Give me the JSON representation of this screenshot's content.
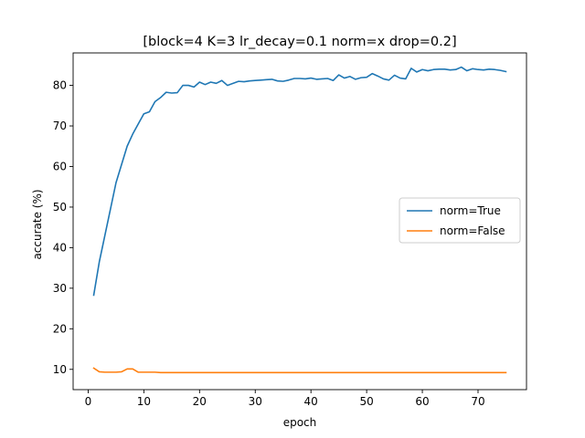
{
  "chart_data": {
    "type": "line",
    "title": "[block=4 K=3 lr_decay=0.1 norm=x drop=0.2]",
    "xlabel": "epoch",
    "ylabel": "accurate (%)",
    "xlim": [
      -2.7,
      78.7
    ],
    "ylim": [
      5.0,
      88.0
    ],
    "xticks": [
      0,
      10,
      20,
      30,
      40,
      50,
      60,
      70
    ],
    "yticks": [
      10,
      20,
      30,
      40,
      50,
      60,
      70,
      80
    ],
    "grid": false,
    "legend_position": "center-right",
    "x": [
      1,
      2,
      3,
      4,
      5,
      6,
      7,
      8,
      9,
      10,
      11,
      12,
      13,
      14,
      15,
      16,
      17,
      18,
      19,
      20,
      21,
      22,
      23,
      24,
      25,
      26,
      27,
      28,
      29,
      30,
      31,
      32,
      33,
      34,
      35,
      36,
      37,
      38,
      39,
      40,
      41,
      42,
      43,
      44,
      45,
      46,
      47,
      48,
      49,
      50,
      51,
      52,
      53,
      54,
      55,
      56,
      57,
      58,
      59,
      60,
      61,
      62,
      63,
      64,
      65,
      66,
      67,
      68,
      69,
      70,
      71,
      72,
      73,
      74,
      75
    ],
    "series": [
      {
        "name": "norm=True",
        "color": "#1f77b4",
        "values": [
          28.3,
          36.5,
          43.0,
          49.5,
          56.0,
          60.5,
          65.0,
          68.0,
          70.5,
          73.0,
          73.5,
          76.0,
          77.0,
          78.3,
          78.1,
          78.2,
          80.0,
          80.0,
          79.6,
          80.8,
          80.2,
          80.8,
          80.5,
          81.2,
          80.0,
          80.5,
          81.0,
          80.9,
          81.1,
          81.2,
          81.3,
          81.4,
          81.5,
          81.1,
          81.0,
          81.3,
          81.7,
          81.7,
          81.6,
          81.8,
          81.5,
          81.6,
          81.7,
          81.2,
          82.6,
          81.8,
          82.2,
          81.5,
          81.9,
          82.0,
          82.9,
          82.3,
          81.6,
          81.3,
          82.5,
          81.8,
          81.6,
          84.2,
          83.3,
          83.9,
          83.6,
          83.9,
          84.0,
          84.0,
          83.8,
          83.9,
          84.5,
          83.6,
          84.1,
          83.9,
          83.8,
          84.0,
          83.9,
          83.7,
          83.4
        ]
      },
      {
        "name": "norm=False",
        "color": "#ff7f0e",
        "values": [
          10.3,
          9.4,
          9.3,
          9.3,
          9.3,
          9.4,
          10.1,
          10.1,
          9.3,
          9.3,
          9.3,
          9.3,
          9.2,
          9.2,
          9.2,
          9.2,
          9.2,
          9.2,
          9.2,
          9.2,
          9.2,
          9.2,
          9.2,
          9.2,
          9.2,
          9.2,
          9.2,
          9.2,
          9.2,
          9.2,
          9.2,
          9.2,
          9.2,
          9.2,
          9.2,
          9.2,
          9.2,
          9.2,
          9.2,
          9.2,
          9.2,
          9.2,
          9.2,
          9.2,
          9.2,
          9.2,
          9.2,
          9.2,
          9.2,
          9.2,
          9.2,
          9.2,
          9.2,
          9.2,
          9.2,
          9.2,
          9.2,
          9.2,
          9.2,
          9.2,
          9.2,
          9.2,
          9.2,
          9.2,
          9.2,
          9.2,
          9.2,
          9.2,
          9.2,
          9.2,
          9.2,
          9.2,
          9.2,
          9.2,
          9.2
        ]
      }
    ]
  }
}
